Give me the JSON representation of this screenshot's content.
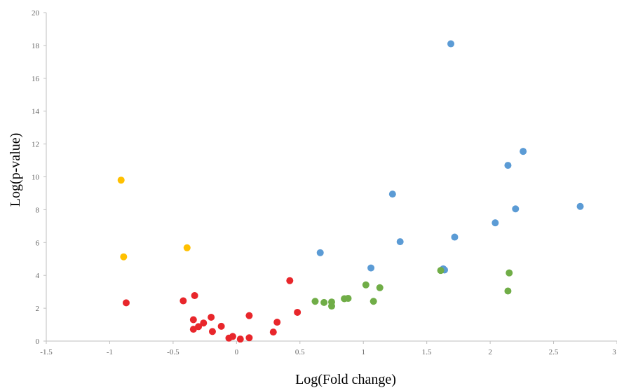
{
  "chart_data": {
    "type": "scatter",
    "title": "",
    "xlabel": "Log(Fold change)",
    "ylabel": "Log(p-value)",
    "xlim": [
      -1.5,
      3
    ],
    "ylim": [
      0,
      20
    ],
    "x_ticks": [
      -1.5,
      -1,
      -0.5,
      0,
      0.5,
      1,
      1.5,
      2,
      2.5,
      3
    ],
    "x_tick_labels": [
      "-1.5",
      "-1",
      "-0.5",
      "0",
      "0.5",
      "1",
      "1.5",
      "2",
      "2.5",
      "3"
    ],
    "y_ticks": [
      0,
      2,
      4,
      6,
      8,
      10,
      12,
      14,
      16,
      18,
      20
    ],
    "y_tick_labels": [
      "0",
      "2",
      "4",
      "6",
      "8",
      "10",
      "12",
      "14",
      "16",
      "18",
      "20"
    ],
    "grid": false,
    "legend": "none",
    "series": [
      {
        "color": "#5b9bd5",
        "points": [
          [
            1.69,
            18.1
          ],
          [
            2.26,
            11.55
          ],
          [
            2.14,
            10.7
          ],
          [
            1.23,
            8.95
          ],
          [
            2.71,
            8.2
          ],
          [
            2.2,
            8.05
          ],
          [
            2.04,
            7.2
          ],
          [
            1.72,
            6.33
          ],
          [
            1.29,
            6.05
          ],
          [
            0.66,
            5.38
          ],
          [
            1.06,
            4.45
          ],
          [
            1.63,
            4.4
          ],
          [
            1.64,
            4.33
          ]
        ]
      },
      {
        "color": "#ffc000",
        "points": [
          [
            -0.91,
            9.8
          ],
          [
            -0.89,
            5.13
          ],
          [
            -0.39,
            5.68
          ]
        ]
      },
      {
        "color": "#70ad47",
        "points": [
          [
            1.61,
            4.3
          ],
          [
            2.15,
            4.15
          ],
          [
            1.02,
            3.42
          ],
          [
            1.13,
            3.25
          ],
          [
            2.14,
            3.05
          ],
          [
            0.62,
            2.42
          ],
          [
            0.69,
            2.35
          ],
          [
            0.75,
            2.38
          ],
          [
            0.75,
            2.13
          ],
          [
            0.85,
            2.58
          ],
          [
            0.88,
            2.6
          ],
          [
            1.08,
            2.42
          ]
        ]
      },
      {
        "color": "#e8262b",
        "points": [
          [
            -0.87,
            2.33
          ],
          [
            -0.42,
            2.45
          ],
          [
            -0.33,
            2.77
          ],
          [
            0.42,
            3.68
          ],
          [
            -0.34,
            1.3
          ],
          [
            -0.2,
            1.45
          ],
          [
            -0.26,
            1.1
          ],
          [
            -0.3,
            0.88
          ],
          [
            -0.34,
            0.72
          ],
          [
            -0.19,
            0.58
          ],
          [
            -0.12,
            0.9
          ],
          [
            -0.06,
            0.18
          ],
          [
            -0.03,
            0.28
          ],
          [
            0.03,
            0.12
          ],
          [
            0.1,
            1.55
          ],
          [
            0.1,
            0.2
          ],
          [
            0.32,
            1.15
          ],
          [
            0.29,
            0.55
          ],
          [
            0.48,
            1.75
          ]
        ]
      }
    ]
  }
}
